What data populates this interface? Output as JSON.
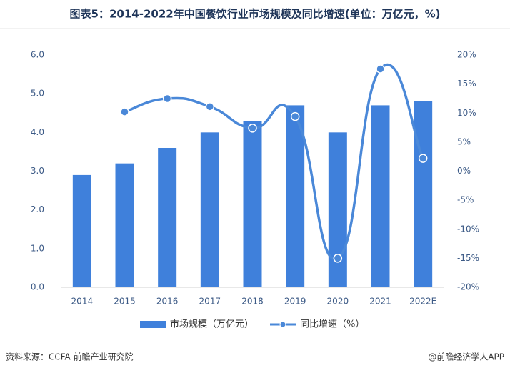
{
  "chart_data": {
    "type": "bar-line",
    "title": "图表5：2014-2022年中国餐饮行业市场规模及同比增速(单位：万亿元，%)",
    "categories": [
      "2014",
      "2015",
      "2016",
      "2017",
      "2018",
      "2019",
      "2020",
      "2021",
      "2022E"
    ],
    "series": [
      {
        "name": "市场规模（万亿元）",
        "type": "bar",
        "color": "#3f80db",
        "values": [
          2.9,
          3.2,
          3.6,
          4.0,
          4.3,
          4.7,
          4.0,
          4.7,
          4.8
        ]
      },
      {
        "name": "同比增速（%）",
        "type": "line",
        "axis": "y2",
        "color": "#4a88d8",
        "values": [
          null,
          10.2,
          12.5,
          11.1,
          7.4,
          9.4,
          -15.0,
          17.6,
          2.2
        ]
      }
    ],
    "ylim": [
      0,
      6
    ],
    "yticks": [
      {
        "value": 0,
        "label": "0.0"
      },
      {
        "value": 1,
        "label": "1.0"
      },
      {
        "value": 2,
        "label": "2.0"
      },
      {
        "value": 3,
        "label": "3.0"
      },
      {
        "value": 4,
        "label": "4.0"
      },
      {
        "value": 5,
        "label": "5.0"
      },
      {
        "value": 6,
        "label": "6.0"
      }
    ],
    "y2lim": [
      -20,
      20
    ],
    "y2ticks": [
      {
        "value": -20,
        "label": "-20%"
      },
      {
        "value": -15,
        "label": "-15%"
      },
      {
        "value": -10,
        "label": "-10%"
      },
      {
        "value": -5,
        "label": "-5%"
      },
      {
        "value": 0,
        "label": "0%"
      },
      {
        "value": 5,
        "label": "5%"
      },
      {
        "value": 10,
        "label": "10%"
      },
      {
        "value": 15,
        "label": "15%"
      },
      {
        "value": 20,
        "label": "20%"
      }
    ],
    "grid": false,
    "legend": "bottom",
    "source": "资料来源：CCFA 前瞻产业研究院",
    "credit": "@前瞻经济学人APP"
  }
}
